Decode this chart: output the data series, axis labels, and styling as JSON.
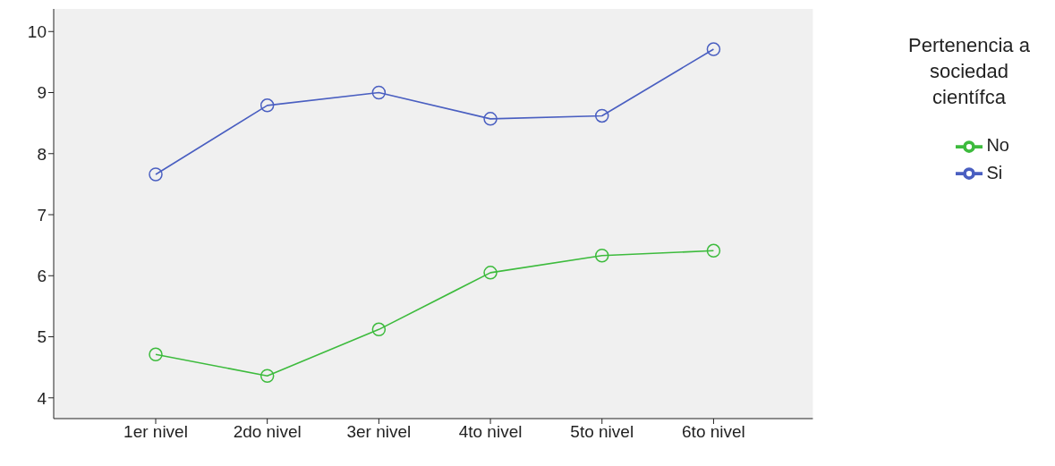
{
  "chart_data": {
    "type": "line",
    "categories": [
      "1er nivel",
      "2do nivel",
      "3er nivel",
      "4to nivel",
      "5to nivel",
      "6to nivel"
    ],
    "series": [
      {
        "name": "Si",
        "color": "#4a5fc1",
        "values": [
          7.66,
          8.79,
          9.0,
          8.57,
          8.62,
          9.71
        ]
      },
      {
        "name": "No",
        "color": "#3dbb3d",
        "values": [
          4.71,
          4.36,
          5.12,
          6.05,
          6.33,
          6.41
        ]
      }
    ],
    "legend_title": "Pertenencia a sociedad científca",
    "legend": "right",
    "marker": "circle",
    "line_style": "solid",
    "grid": false,
    "ylim": [
      3.66,
      10.37
    ],
    "yticks": [
      4,
      5,
      6,
      7,
      8,
      9,
      10
    ]
  }
}
